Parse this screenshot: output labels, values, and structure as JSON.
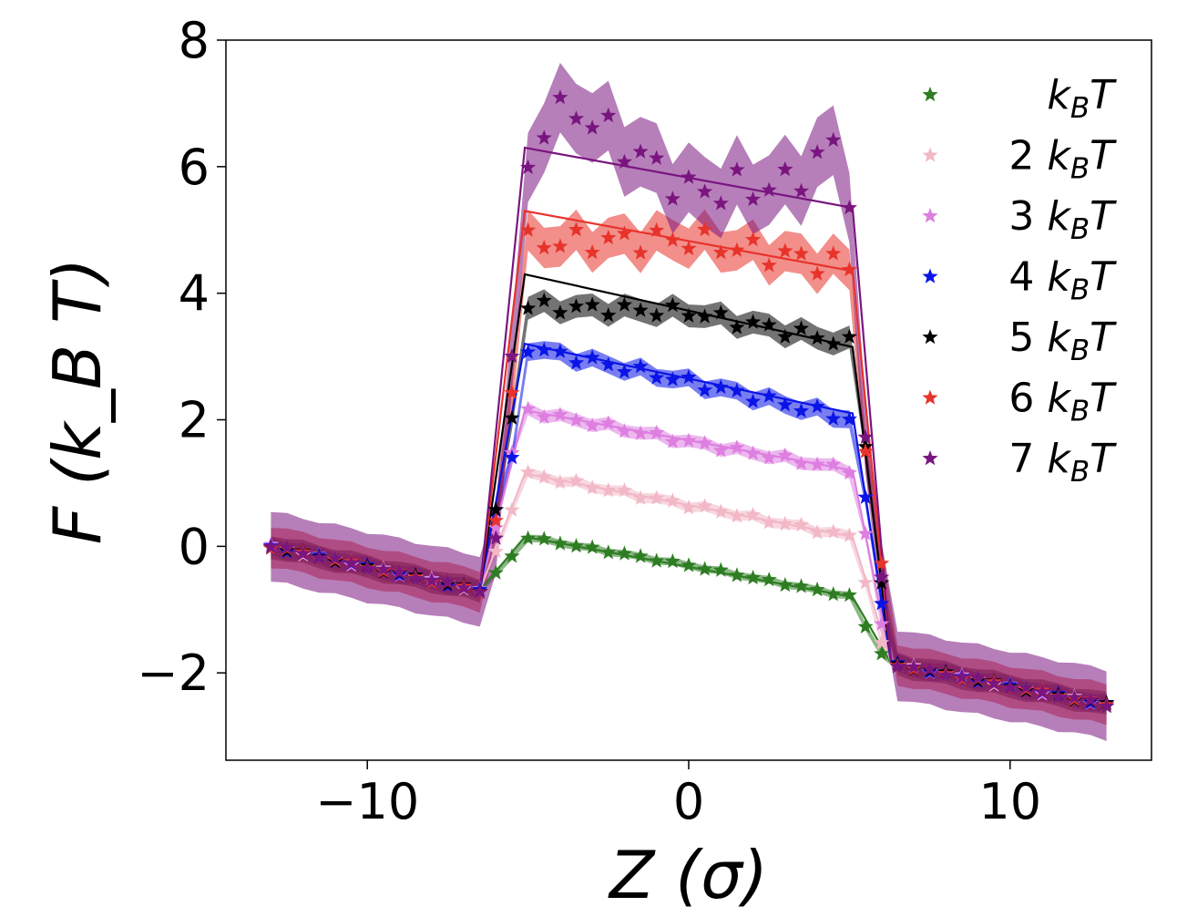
{
  "chart_data": {
    "type": "line",
    "title": "",
    "xlabel": "Z (σ)",
    "ylabel": "F (k_B T)",
    "xlim": [
      -14.4,
      14.4
    ],
    "ylim": [
      -3.38,
      8.0
    ],
    "xticks": [
      -10,
      0,
      10
    ],
    "xtick_labels": [
      "−10",
      "0",
      "10"
    ],
    "yticks": [
      -2,
      0,
      2,
      4,
      6,
      8
    ],
    "ytick_labels": [
      "−2",
      "0",
      "2",
      "4",
      "6",
      "8"
    ],
    "grid": false,
    "legend_position": "top-right",
    "legend_entries": [
      "k_BT",
      "2 k_BT",
      "3 k_BT",
      "4 k_BT",
      "5 k_BT",
      "6 k_BT",
      "7 k_BT"
    ],
    "series": [
      {
        "name": "k_BT",
        "prefix": "",
        "color": "#2e7d22",
        "band": 0.06,
        "noise": 0.02,
        "fit": [
          [
            -13,
            0
          ],
          [
            -6.5,
            -0.7
          ],
          [
            -5.1,
            0.15
          ],
          [
            5.1,
            -0.8
          ],
          [
            6.3,
            -1.85
          ],
          [
            13,
            -2.5
          ]
        ],
        "points": [
          [
            -13,
            0
          ],
          [
            -6.5,
            -0.7
          ],
          [
            -6.0,
            -0.45
          ],
          [
            -5.5,
            -0.15
          ],
          [
            -5.1,
            0.15
          ],
          [
            0,
            -0.3
          ],
          [
            5.1,
            -0.8
          ],
          [
            5.5,
            -1.3
          ],
          [
            6.0,
            -1.7
          ],
          [
            6.3,
            -1.85
          ],
          [
            13,
            -2.5
          ]
        ]
      },
      {
        "name": "2 k_BT",
        "prefix": "2 ",
        "color": "#f2b8c6",
        "band": 0.08,
        "noise": 0.04,
        "fit": [
          [
            -13,
            0
          ],
          [
            -6.5,
            -0.7
          ],
          [
            -5.1,
            1.15
          ],
          [
            5.1,
            0.15
          ],
          [
            6.3,
            -1.85
          ],
          [
            13,
            -2.5
          ]
        ],
        "points": [
          [
            -13,
            0
          ],
          [
            -6.5,
            -0.7
          ],
          [
            -6.0,
            -0.1
          ],
          [
            -5.5,
            0.6
          ],
          [
            -5.1,
            1.15
          ],
          [
            0,
            0.65
          ],
          [
            5.1,
            0.15
          ],
          [
            5.5,
            -0.6
          ],
          [
            6.0,
            -1.5
          ],
          [
            6.3,
            -1.85
          ],
          [
            13,
            -2.5
          ]
        ]
      },
      {
        "name": "3 k_BT",
        "prefix": "3 ",
        "color": "#dd7ee0",
        "band": 0.1,
        "noise": 0.05,
        "fit": [
          [
            -13,
            0
          ],
          [
            -6.5,
            -0.7
          ],
          [
            -5.1,
            2.15
          ],
          [
            5.1,
            1.2
          ],
          [
            6.3,
            -1.85
          ],
          [
            13,
            -2.5
          ]
        ],
        "points": [
          [
            -13,
            0
          ],
          [
            -6.5,
            -0.7
          ],
          [
            -6.0,
            0.3
          ],
          [
            -5.5,
            1.5
          ],
          [
            -5.1,
            2.15
          ],
          [
            0,
            1.65
          ],
          [
            5.1,
            1.2
          ],
          [
            5.5,
            0.2
          ],
          [
            6.0,
            -1.2
          ],
          [
            6.3,
            -1.85
          ],
          [
            13,
            -2.5
          ]
        ]
      },
      {
        "name": "4 k_BT",
        "prefix": "4 ",
        "color": "#0a14e6",
        "band": 0.14,
        "noise": 0.08,
        "fit": [
          [
            -13,
            0
          ],
          [
            -6.5,
            -0.7
          ],
          [
            -5.1,
            3.2
          ],
          [
            5.1,
            2.1
          ],
          [
            6.3,
            -1.85
          ],
          [
            13,
            -2.5
          ]
        ],
        "points": [
          [
            -13,
            0
          ],
          [
            -6.5,
            -0.7
          ],
          [
            -6.0,
            0.6
          ],
          [
            -5.5,
            1.4
          ],
          [
            -5.1,
            3.15
          ],
          [
            0,
            2.6
          ],
          [
            5.1,
            2.0
          ],
          [
            5.5,
            0.8
          ],
          [
            6.0,
            -0.9
          ],
          [
            6.3,
            -1.85
          ],
          [
            13,
            -2.5
          ]
        ]
      },
      {
        "name": "5 k_BT",
        "prefix": "5 ",
        "color": "#000000",
        "band": 0.18,
        "noise": 0.1,
        "fit": [
          [
            -13,
            0
          ],
          [
            -6.5,
            -0.7
          ],
          [
            -5.1,
            4.3
          ],
          [
            5.1,
            3.15
          ],
          [
            6.3,
            -1.85
          ],
          [
            13,
            -2.5
          ]
        ],
        "points": [
          [
            -13,
            0
          ],
          [
            -6.5,
            -0.7
          ],
          [
            -6.0,
            0.6
          ],
          [
            -5.5,
            2.0
          ],
          [
            -5.1,
            3.8
          ],
          [
            0,
            3.7
          ],
          [
            5.1,
            3.2
          ],
          [
            5.5,
            1.6
          ],
          [
            6.0,
            -0.6
          ],
          [
            6.3,
            -1.85
          ],
          [
            13,
            -2.5
          ]
        ]
      },
      {
        "name": "6 k_BT",
        "prefix": "6 ",
        "color": "#e8332b",
        "band": 0.32,
        "noise": 0.2,
        "fit": [
          [
            -13,
            0
          ],
          [
            -6.5,
            -0.7
          ],
          [
            -5.1,
            5.3
          ],
          [
            5.1,
            4.35
          ],
          [
            6.3,
            -1.85
          ],
          [
            13,
            -2.5
          ]
        ],
        "points": [
          [
            -13,
            0
          ],
          [
            -6.5,
            -0.7
          ],
          [
            -6.0,
            0.4
          ],
          [
            -5.5,
            2.4
          ],
          [
            -5.1,
            4.8
          ],
          [
            0,
            4.85
          ],
          [
            5.1,
            4.4
          ],
          [
            5.5,
            1.5
          ],
          [
            6.0,
            -0.3
          ],
          [
            6.3,
            -1.85
          ],
          [
            13,
            -2.5
          ]
        ]
      },
      {
        "name": "7 k_BT",
        "prefix": "7 ",
        "color": "#7a1580",
        "band": 0.55,
        "noise": 0.3,
        "fit": [
          [
            -13,
            0
          ],
          [
            -6.5,
            -0.7
          ],
          [
            -5.1,
            6.3
          ],
          [
            5.1,
            5.35
          ],
          [
            6.3,
            -1.85
          ],
          [
            13,
            -2.5
          ]
        ],
        "points": [
          [
            -13,
            0
          ],
          [
            -6.5,
            -0.7
          ],
          [
            -6.0,
            0.1
          ],
          [
            -5.5,
            3.0
          ],
          [
            -5.1,
            5.8
          ],
          [
            -4.5,
            6.7
          ],
          [
            -3.5,
            6.9
          ],
          [
            0,
            5.6
          ],
          [
            3.0,
            5.7
          ],
          [
            4.5,
            6.3
          ],
          [
            5.1,
            5.5
          ],
          [
            5.5,
            1.7
          ],
          [
            6.0,
            -0.5
          ],
          [
            6.3,
            -1.85
          ],
          [
            13,
            -2.5
          ]
        ]
      }
    ]
  }
}
